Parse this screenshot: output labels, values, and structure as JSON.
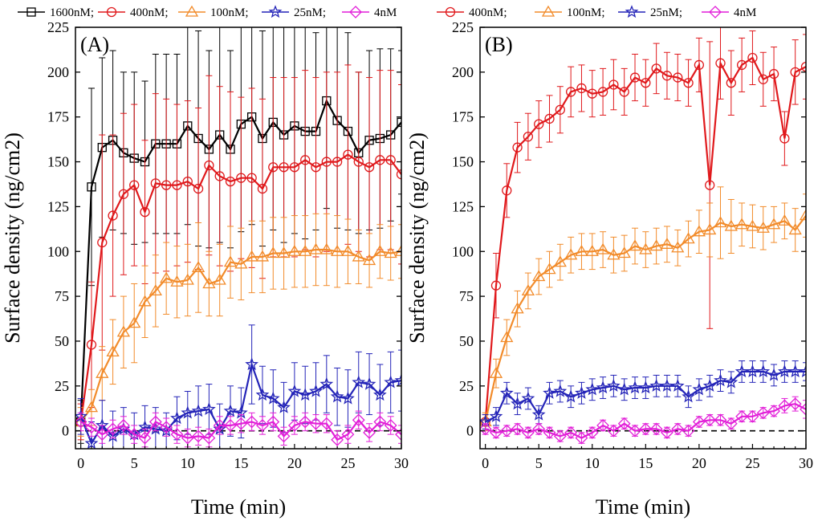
{
  "chart_data": [
    {
      "type": "line",
      "panel_label": "(A)",
      "xlabel": "Time (min)",
      "ylabel": "Surface density (ng/cm2)",
      "xlim": [
        -0.5,
        30
      ],
      "ylim": [
        -10,
        225
      ],
      "xticks": [
        0,
        5,
        10,
        15,
        20,
        25,
        30
      ],
      "yticks": [
        0,
        25,
        50,
        75,
        100,
        125,
        150,
        175,
        200,
        225
      ],
      "baseline": 0,
      "legend": {
        "position": "top",
        "entries": [
          "1600nM;",
          "400nM;",
          "100nM;",
          "25nM;",
          "4nM"
        ]
      },
      "series": [
        {
          "name": "1600nM;",
          "color": "#000000",
          "marker": "square",
          "x": [
            0,
            1,
            2,
            3,
            4,
            5,
            6,
            7,
            8,
            9,
            10,
            11,
            12,
            13,
            14,
            15,
            16,
            17,
            18,
            19,
            20,
            21,
            22,
            23,
            24,
            25,
            26,
            27,
            28,
            29,
            30
          ],
          "values": [
            5,
            136,
            158,
            162,
            155,
            152,
            150,
            160,
            160,
            160,
            170,
            163,
            157,
            165,
            157,
            171,
            175,
            163,
            172,
            165,
            170,
            167,
            167,
            184,
            173,
            167,
            155,
            162,
            163,
            165,
            172
          ],
          "errors": [
            12,
            55,
            50,
            50,
            45,
            48,
            45,
            50,
            50,
            50,
            55,
            60,
            55,
            60,
            55,
            60,
            60,
            60,
            60,
            60,
            60,
            60,
            55,
            60,
            60,
            55,
            45,
            50,
            50,
            48,
            40
          ]
        },
        {
          "name": "400nM;",
          "color": "#e0191c",
          "marker": "circle",
          "x": [
            0,
            1,
            2,
            3,
            4,
            5,
            6,
            7,
            8,
            9,
            10,
            11,
            12,
            13,
            14,
            15,
            16,
            17,
            18,
            19,
            20,
            21,
            22,
            23,
            24,
            25,
            26,
            27,
            28,
            29,
            30
          ],
          "values": [
            5,
            48,
            105,
            120,
            132,
            137,
            122,
            138,
            137,
            137,
            139,
            135,
            148,
            142,
            139,
            141,
            141,
            135,
            147,
            147,
            147,
            151,
            147,
            150,
            150,
            154,
            150,
            147,
            151,
            151,
            143
          ],
          "errors": [
            10,
            35,
            60,
            45,
            45,
            45,
            40,
            50,
            48,
            45,
            45,
            45,
            50,
            50,
            50,
            45,
            50,
            50,
            50,
            50,
            50,
            50,
            50,
            50,
            50,
            50,
            50,
            50,
            50,
            50,
            50
          ]
        },
        {
          "name": "100nM;",
          "color": "#f28b2a",
          "marker": "triangle",
          "x": [
            0,
            1,
            2,
            3,
            4,
            5,
            6,
            7,
            8,
            9,
            10,
            11,
            12,
            13,
            14,
            15,
            16,
            17,
            18,
            19,
            20,
            21,
            22,
            23,
            24,
            25,
            26,
            27,
            28,
            29,
            30
          ],
          "values": [
            5,
            13,
            32,
            44,
            55,
            60,
            72,
            78,
            85,
            83,
            84,
            91,
            82,
            84,
            94,
            93,
            97,
            97,
            99,
            99,
            100,
            100,
            101,
            101,
            100,
            100,
            97,
            95,
            100,
            99,
            100
          ],
          "errors": [
            8,
            10,
            15,
            18,
            20,
            22,
            20,
            20,
            20,
            20,
            20,
            25,
            18,
            20,
            20,
            20,
            20,
            20,
            20,
            20,
            20,
            20,
            20,
            20,
            20,
            18,
            15,
            15,
            15,
            15,
            15
          ]
        },
        {
          "name": "25nM;",
          "color": "#2424b8",
          "marker": "star",
          "x": [
            0,
            1,
            2,
            3,
            4,
            5,
            6,
            7,
            8,
            9,
            10,
            11,
            12,
            13,
            14,
            15,
            16,
            17,
            18,
            19,
            20,
            21,
            22,
            23,
            24,
            25,
            26,
            27,
            28,
            29,
            30
          ],
          "values": [
            8,
            -7,
            3,
            -3,
            1,
            -2,
            2,
            1,
            0,
            7,
            10,
            11,
            12,
            1,
            11,
            10,
            37,
            20,
            18,
            13,
            22,
            20,
            22,
            26,
            19,
            18,
            27,
            26,
            20,
            27,
            28
          ],
          "errors": [
            10,
            12,
            14,
            14,
            12,
            12,
            12,
            12,
            10,
            12,
            12,
            14,
            14,
            14,
            14,
            14,
            22,
            16,
            16,
            14,
            16,
            16,
            16,
            16,
            16,
            16,
            17,
            17,
            17,
            17,
            17
          ]
        },
        {
          "name": "4nM",
          "color": "#e21fd8",
          "marker": "diamond",
          "x": [
            0,
            1,
            2,
            3,
            4,
            5,
            6,
            7,
            8,
            9,
            10,
            11,
            12,
            13,
            14,
            15,
            16,
            17,
            18,
            19,
            20,
            21,
            22,
            23,
            24,
            25,
            26,
            27,
            28,
            29,
            30
          ],
          "values": [
            5,
            2,
            -2,
            1,
            3,
            -2,
            -4,
            5,
            2,
            -2,
            -4,
            -3,
            -4,
            3,
            3,
            4,
            5,
            3,
            5,
            -3,
            3,
            5,
            4,
            4,
            -5,
            -2,
            6,
            -1,
            5,
            3,
            -2
          ],
          "errors": [
            5,
            5,
            5,
            5,
            5,
            5,
            5,
            5,
            5,
            5,
            5,
            5,
            5,
            5,
            5,
            5,
            5,
            5,
            5,
            5,
            5,
            5,
            5,
            5,
            5,
            5,
            5,
            5,
            5,
            5,
            5
          ]
        }
      ]
    },
    {
      "type": "line",
      "panel_label": "(B)",
      "xlabel": "Time (min)",
      "ylabel": "Surface density (ng/cm2)",
      "xlim": [
        -0.5,
        30
      ],
      "ylim": [
        -10,
        225
      ],
      "xticks": [
        0,
        5,
        10,
        15,
        20,
        25,
        30
      ],
      "yticks": [
        0,
        25,
        50,
        75,
        100,
        125,
        150,
        175,
        200,
        225
      ],
      "baseline": 0,
      "legend": {
        "position": "top",
        "entries": [
          "400nM;",
          "100nM;",
          "25nM;",
          "4nM"
        ]
      },
      "series": [
        {
          "name": "400nM;",
          "color": "#e0191c",
          "marker": "circle",
          "x": [
            0,
            1,
            2,
            3,
            4,
            5,
            6,
            7,
            8,
            9,
            10,
            11,
            12,
            13,
            14,
            15,
            16,
            17,
            18,
            19,
            20,
            21,
            22,
            23,
            24,
            25,
            26,
            27,
            28,
            29,
            30
          ],
          "values": [
            5,
            81,
            134,
            158,
            164,
            171,
            174,
            179,
            189,
            191,
            188,
            189,
            193,
            189,
            197,
            194,
            202,
            198,
            197,
            194,
            204,
            137,
            205,
            194,
            204,
            208,
            196,
            199,
            163,
            200,
            203
          ],
          "errors": [
            4,
            18,
            15,
            14,
            13,
            13,
            13,
            13,
            14,
            13,
            13,
            13,
            14,
            13,
            13,
            13,
            14,
            13,
            13,
            13,
            15,
            80,
            20,
            18,
            15,
            15,
            15,
            15,
            15,
            18,
            18
          ]
        },
        {
          "name": "100nM;",
          "color": "#f28b2a",
          "marker": "triangle",
          "x": [
            0,
            1,
            2,
            3,
            4,
            5,
            6,
            7,
            8,
            9,
            10,
            11,
            12,
            13,
            14,
            15,
            16,
            17,
            18,
            19,
            20,
            21,
            22,
            23,
            24,
            25,
            26,
            27,
            28,
            29,
            30
          ],
          "values": [
            5,
            32,
            52,
            68,
            78,
            86,
            90,
            94,
            98,
            100,
            100,
            101,
            98,
            99,
            103,
            101,
            103,
            104,
            102,
            107,
            111,
            112,
            116,
            114,
            115,
            114,
            113,
            115,
            117,
            112,
            120
          ],
          "errors": [
            5,
            8,
            10,
            10,
            10,
            10,
            10,
            10,
            10,
            10,
            10,
            10,
            10,
            10,
            10,
            10,
            10,
            10,
            10,
            10,
            12,
            15,
            20,
            15,
            12,
            12,
            12,
            10,
            10,
            12,
            12
          ]
        },
        {
          "name": "25nM;",
          "color": "#2424b8",
          "marker": "star",
          "x": [
            0,
            1,
            2,
            3,
            4,
            5,
            6,
            7,
            8,
            9,
            10,
            11,
            12,
            13,
            14,
            15,
            16,
            17,
            18,
            19,
            20,
            21,
            22,
            23,
            24,
            25,
            26,
            27,
            28,
            29,
            30
          ],
          "values": [
            5,
            8,
            21,
            15,
            18,
            9,
            21,
            22,
            19,
            21,
            23,
            24,
            25,
            23,
            24,
            24,
            25,
            25,
            25,
            19,
            23,
            25,
            28,
            27,
            33,
            33,
            33,
            31,
            33,
            33,
            33
          ],
          "errors": [
            4,
            5,
            6,
            6,
            6,
            5,
            6,
            6,
            6,
            6,
            6,
            6,
            6,
            6,
            6,
            6,
            6,
            6,
            6,
            6,
            6,
            6,
            6,
            6,
            6,
            6,
            6,
            6,
            6,
            6,
            5
          ]
        },
        {
          "name": "4nM",
          "color": "#e21fd8",
          "marker": "diamond",
          "x": [
            0,
            1,
            2,
            3,
            4,
            5,
            6,
            7,
            8,
            9,
            10,
            11,
            12,
            13,
            14,
            15,
            16,
            17,
            18,
            19,
            20,
            21,
            22,
            23,
            24,
            25,
            26,
            27,
            28,
            29,
            30
          ],
          "values": [
            1,
            -1,
            0,
            1,
            -1,
            1,
            -1,
            -3,
            -1,
            -4,
            -1,
            3,
            0,
            4,
            0,
            1,
            1,
            -1,
            1,
            0,
            5,
            6,
            6,
            4,
            8,
            8,
            10,
            11,
            14,
            15,
            12
          ],
          "errors": [
            3,
            3,
            3,
            3,
            3,
            3,
            3,
            3,
            3,
            3,
            3,
            3,
            3,
            3,
            3,
            3,
            3,
            3,
            3,
            3,
            3,
            3,
            3,
            3,
            3,
            3,
            3,
            3,
            4,
            4,
            5
          ]
        }
      ]
    }
  ]
}
